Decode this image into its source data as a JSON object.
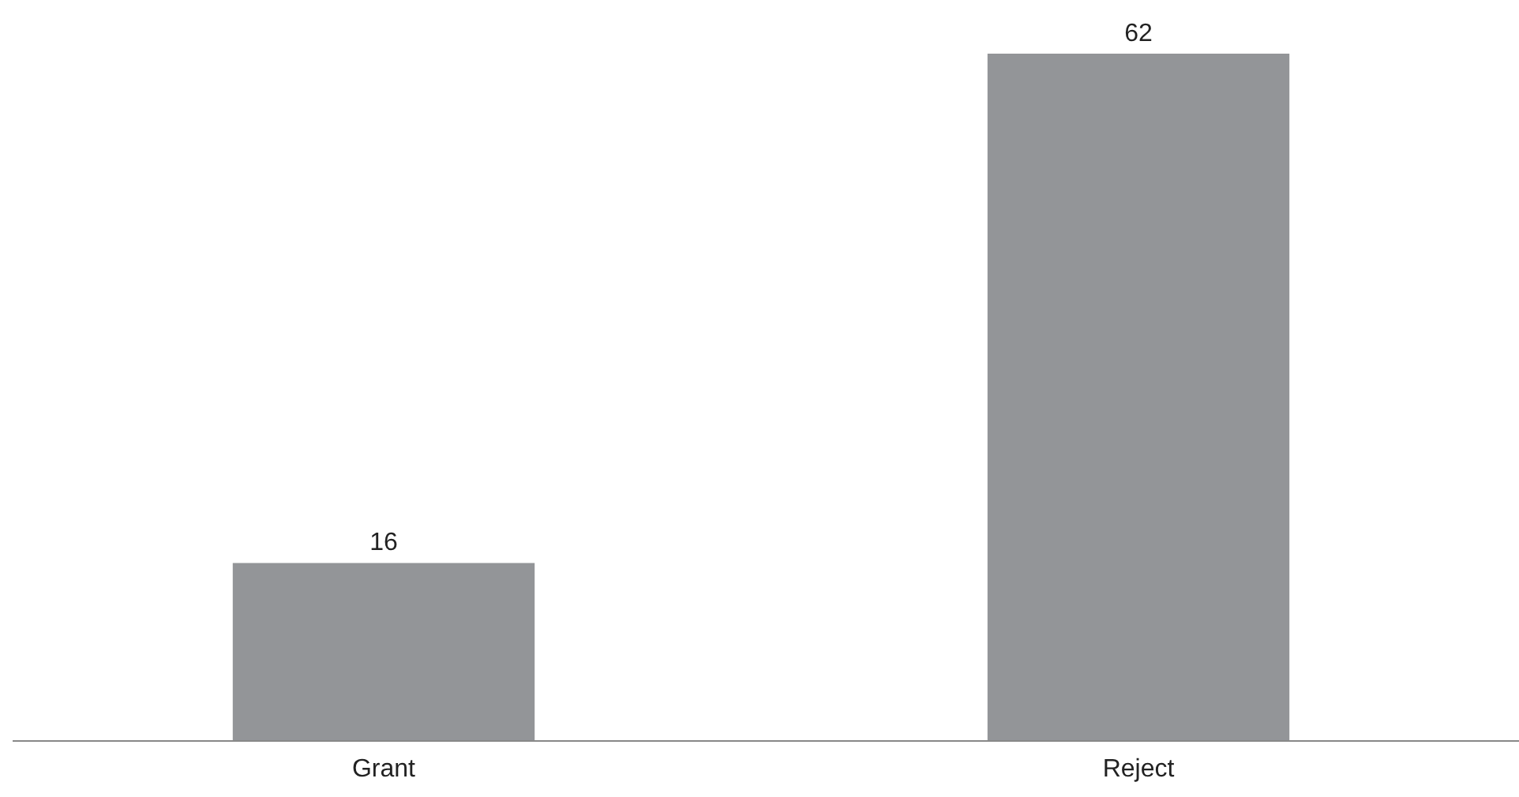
{
  "chart_data": {
    "type": "bar",
    "categories": [
      "Grant",
      "Reject"
    ],
    "values": [
      16,
      62
    ],
    "color": "#939598",
    "data_labels": true
  }
}
